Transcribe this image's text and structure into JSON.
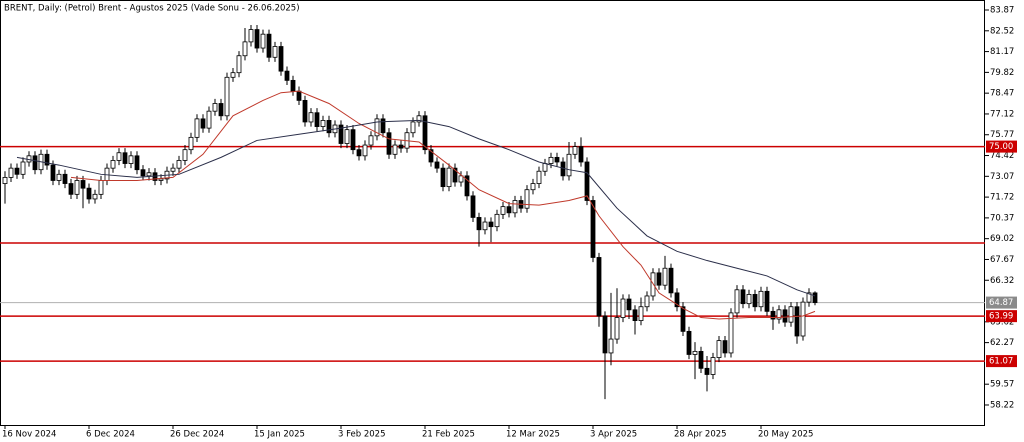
{
  "chart_data": {
    "type": "candlestick",
    "title": "BRENT, Daily:  (Petrol) Brent - Agustos 2025 (Vade Sonu - 26.06.2025)",
    "categories": [
      "16 Nov 2024",
      null,
      null,
      null,
      null,
      null,
      null,
      null,
      null,
      null,
      null,
      null,
      null,
      null,
      "6 Dec 2024",
      null,
      null,
      null,
      null,
      null,
      null,
      null,
      null,
      null,
      null,
      null,
      null,
      null,
      "26 Dec 2024",
      null,
      null,
      null,
      null,
      null,
      null,
      null,
      null,
      null,
      null,
      null,
      null,
      null,
      "15 Jan 2025",
      null,
      null,
      null,
      null,
      null,
      null,
      null,
      null,
      null,
      null,
      null,
      null,
      null,
      "3 Feb 2025",
      null,
      null,
      null,
      null,
      null,
      null,
      null,
      null,
      null,
      null,
      null,
      null,
      null,
      "21 Feb 2025",
      null,
      null,
      null,
      null,
      null,
      null,
      null,
      null,
      null,
      null,
      null,
      null,
      null,
      "12 Mar 2025",
      null,
      null,
      null,
      null,
      null,
      null,
      null,
      null,
      null,
      null,
      null,
      null,
      null,
      "3 Apr 2025",
      null,
      null,
      null,
      null,
      null,
      null,
      null,
      null,
      null,
      null,
      null,
      null,
      null,
      "28 Apr 2025",
      null,
      null,
      null,
      null,
      null,
      null,
      null,
      null,
      null,
      null,
      null,
      null,
      null,
      "20 May 2025",
      null,
      null,
      null,
      null,
      null,
      null,
      null,
      null,
      null
    ],
    "candles": {
      "open": [
        72.6,
        73.0,
        73.6,
        73.2,
        74.0,
        74.4,
        73.5,
        74.5,
        73.8,
        72.8,
        73.2,
        72.6,
        71.9,
        72.8,
        72.3,
        71.6,
        71.9,
        72.8,
        73.6,
        74.1,
        74.6,
        73.9,
        74.4,
        73.5,
        73.1,
        73.3,
        72.8,
        72.9,
        73.4,
        73.6,
        74.1,
        74.8,
        75.6,
        76.8,
        76.2,
        77.3,
        77.8,
        77.0,
        79.5,
        79.8,
        80.9,
        81.8,
        82.6,
        81.4,
        82.3,
        80.8,
        81.5,
        79.9,
        79.3,
        78.6,
        78.0,
        76.6,
        77.2,
        76.3,
        76.7,
        75.9,
        76.4,
        75.2,
        76.1,
        74.8,
        74.4,
        75.1,
        75.7,
        76.8,
        75.9,
        74.5,
        75.1,
        74.9,
        75.9,
        76.6,
        77.0,
        74.8,
        74.0,
        73.6,
        72.4,
        73.6,
        72.7,
        73.1,
        71.8,
        70.4,
        69.6,
        70.1,
        69.8,
        70.6,
        71.1,
        70.7,
        71.5,
        71.0,
        72.2,
        72.6,
        73.4,
        73.9,
        74.3,
        74.0,
        73.1,
        74.5,
        75.0,
        74.0,
        71.5,
        67.8,
        64.0,
        61.6,
        62.5,
        63.9,
        65.1,
        64.4,
        63.7,
        64.6,
        65.3,
        66.8,
        66.0,
        67.1,
        65.5,
        64.6,
        63.0,
        61.5,
        61.7,
        60.6,
        60.2,
        61.3,
        62.4,
        61.6,
        64.2,
        65.7,
        64.8,
        65.4,
        64.6,
        65.6,
        64.3,
        63.8,
        64.4,
        63.6,
        64.6,
        62.7,
        64.9,
        65.5
      ],
      "high": [
        73.4,
        73.9,
        73.9,
        74.3,
        74.7,
        74.7,
        74.8,
        74.8,
        74.1,
        73.5,
        73.5,
        72.9,
        73.1,
        73.1,
        72.6,
        72.2,
        73.1,
        73.9,
        74.4,
        74.9,
        74.9,
        74.7,
        74.7,
        73.8,
        73.6,
        73.6,
        73.2,
        73.7,
        73.9,
        74.4,
        75.1,
        75.9,
        77.1,
        77.1,
        77.6,
        78.1,
        78.1,
        79.8,
        80.1,
        81.2,
        82.7,
        82.9,
        82.9,
        82.6,
        82.6,
        81.8,
        81.8,
        80.2,
        79.6,
        78.9,
        78.3,
        77.5,
        77.5,
        77.0,
        77.0,
        76.7,
        76.7,
        76.4,
        76.4,
        75.1,
        75.4,
        76.0,
        77.1,
        77.1,
        76.2,
        75.4,
        75.4,
        76.2,
        76.9,
        77.3,
        77.3,
        75.1,
        74.3,
        73.9,
        73.9,
        73.9,
        73.4,
        73.4,
        72.1,
        70.7,
        70.4,
        70.4,
        70.9,
        71.4,
        71.4,
        71.8,
        71.8,
        72.5,
        72.9,
        73.7,
        74.2,
        74.6,
        74.6,
        74.3,
        75.3,
        75.3,
        75.6,
        74.3,
        71.8,
        68.1,
        64.3,
        65.5,
        65.8,
        65.4,
        65.4,
        64.7,
        65.2,
        65.6,
        67.1,
        67.1,
        67.9,
        67.4,
        65.8,
        64.9,
        63.3,
        62.3,
        62.0,
        61.4,
        61.6,
        62.7,
        62.7,
        64.5,
        66.0,
        66.0,
        65.7,
        65.7,
        65.9,
        65.9,
        64.6,
        64.7,
        64.7,
        64.9,
        64.9,
        65.2,
        65.8,
        65.6
      ],
      "low": [
        71.3,
        72.7,
        72.9,
        72.9,
        73.7,
        73.2,
        73.2,
        73.5,
        72.5,
        72.5,
        72.3,
        71.6,
        71.6,
        71.0,
        71.3,
        71.3,
        71.6,
        72.5,
        73.3,
        73.8,
        73.6,
        73.6,
        73.2,
        72.8,
        72.8,
        72.5,
        72.5,
        72.6,
        73.1,
        73.3,
        73.8,
        74.5,
        75.3,
        75.9,
        75.9,
        77.0,
        76.7,
        76.7,
        79.2,
        79.5,
        80.6,
        81.5,
        81.1,
        81.1,
        80.5,
        80.5,
        79.6,
        79.0,
        78.3,
        77.7,
        76.3,
        76.3,
        76.0,
        76.0,
        75.6,
        75.6,
        74.9,
        74.9,
        74.5,
        74.1,
        74.1,
        74.8,
        75.4,
        75.6,
        74.2,
        74.2,
        74.6,
        74.6,
        75.6,
        76.3,
        74.5,
        73.7,
        73.3,
        72.1,
        72.1,
        72.4,
        72.4,
        71.5,
        70.1,
        68.5,
        69.3,
        68.8,
        69.5,
        70.3,
        70.4,
        70.4,
        70.7,
        70.7,
        71.9,
        72.3,
        73.1,
        73.6,
        73.7,
        72.8,
        72.8,
        74.2,
        73.7,
        71.2,
        67.5,
        63.3,
        58.6,
        60.8,
        62.2,
        63.6,
        63.8,
        62.8,
        63.4,
        64.3,
        65.0,
        65.7,
        65.7,
        65.2,
        64.3,
        62.7,
        61.2,
        59.9,
        60.3,
        59.1,
        59.9,
        61.0,
        61.3,
        61.3,
        63.9,
        64.5,
        64.5,
        64.3,
        64.3,
        64.0,
        63.1,
        63.5,
        63.3,
        63.3,
        62.2,
        62.4,
        64.6,
        64.7
      ],
      "close": [
        73.0,
        73.6,
        73.2,
        74.0,
        74.4,
        73.5,
        74.5,
        73.8,
        72.8,
        73.2,
        72.6,
        71.9,
        72.8,
        72.3,
        71.6,
        71.9,
        72.8,
        73.6,
        74.1,
        74.6,
        73.9,
        74.4,
        73.5,
        73.1,
        73.3,
        72.8,
        72.9,
        73.4,
        73.6,
        74.1,
        74.8,
        75.6,
        76.8,
        76.2,
        77.3,
        77.8,
        77.0,
        79.5,
        79.8,
        80.9,
        81.8,
        82.6,
        81.4,
        82.3,
        80.8,
        81.5,
        79.9,
        79.3,
        78.6,
        78.0,
        76.6,
        77.2,
        76.3,
        76.7,
        75.9,
        76.4,
        75.2,
        76.1,
        74.8,
        74.4,
        75.1,
        75.7,
        76.8,
        75.9,
        74.5,
        75.1,
        74.9,
        75.9,
        76.6,
        77.0,
        74.8,
        74.0,
        73.6,
        72.4,
        73.6,
        72.7,
        73.1,
        71.8,
        70.4,
        69.6,
        70.1,
        69.8,
        70.6,
        71.1,
        70.7,
        71.5,
        71.0,
        72.2,
        72.6,
        73.4,
        73.9,
        74.3,
        74.0,
        73.1,
        74.5,
        75.0,
        74.0,
        71.5,
        67.8,
        64.0,
        61.6,
        62.5,
        63.9,
        65.1,
        64.4,
        63.7,
        64.6,
        65.3,
        66.8,
        66.0,
        67.1,
        65.5,
        64.6,
        63.0,
        61.5,
        61.7,
        60.6,
        60.2,
        61.3,
        62.4,
        61.6,
        64.2,
        65.7,
        64.8,
        65.4,
        64.6,
        65.6,
        64.3,
        63.8,
        64.4,
        63.6,
        64.6,
        62.7,
        64.9,
        65.5,
        64.87
      ]
    },
    "bull_color": "#ffffff",
    "bear_color": "#000000",
    "series": [
      {
        "color": "#c0392b",
        "x": [
          11,
          16,
          22,
          28,
          33,
          38,
          43,
          46,
          49,
          54,
          59,
          64,
          69,
          74,
          79,
          84,
          89,
          94,
          97,
          99,
          103,
          106,
          109,
          113,
          116,
          119,
          124,
          129,
          133,
          135
        ],
        "values": [
          73,
          72.8,
          72.8,
          73,
          74.5,
          77,
          78,
          78.5,
          78.6,
          77.8,
          76.5,
          75.5,
          75.3,
          73.8,
          72.2,
          71.3,
          71.2,
          71.5,
          71.8,
          70.5,
          68.5,
          67.3,
          65.5,
          64.5,
          63.9,
          63.8,
          63.9,
          63.9,
          64,
          64.3
        ]
      },
      {
        "color": "#2b2f4a",
        "x": [
          2,
          9,
          16,
          22,
          29,
          36,
          42,
          49,
          56,
          62,
          69,
          74,
          79,
          84,
          89,
          94,
          97,
          102,
          107,
          112,
          117,
          122,
          127,
          132,
          135
        ],
        "values": [
          74.3,
          73.8,
          73.2,
          73,
          73.2,
          74.3,
          75.4,
          75.8,
          76.2,
          76.6,
          76.7,
          76.3,
          75.5,
          74.8,
          74,
          73.5,
          73.3,
          71,
          69.2,
          68.2,
          67.6,
          67.1,
          66.6,
          65.7,
          65.3
        ]
      }
    ],
    "hlines": [
      {
        "value": 75,
        "label": "75.00"
      },
      63.99,
      61.07
    ],
    "hlines_unlabeled": [
      68.74
    ],
    "hline_color": "#cc0000",
    "last_price": 64.87,
    "last_price_color": "#8a8a8a",
    "ylim": [
      56.92,
      84.52
    ],
    "yticks": [
      83.87,
      82.52,
      81.17,
      79.82,
      78.47,
      77.12,
      75.77,
      74.42,
      73.07,
      71.72,
      70.37,
      69.02,
      67.67,
      66.32,
      63.62,
      62.27,
      59.57,
      58.22
    ]
  }
}
